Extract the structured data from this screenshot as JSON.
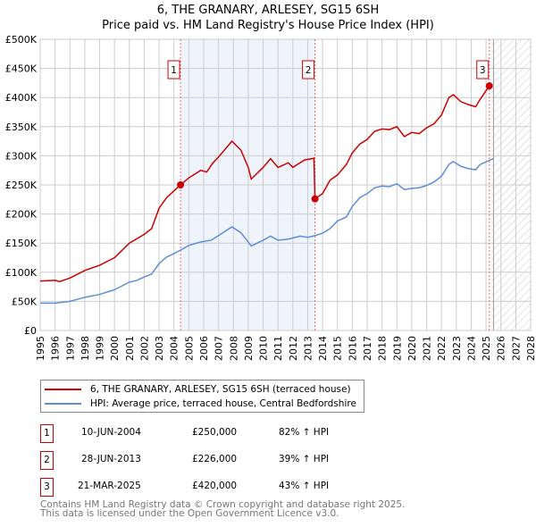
{
  "chart_data": {
    "type": "line",
    "title": "6, THE GRANARY, ARLESEY, SG15 6SH",
    "subtitle": "Price paid vs. HM Land Registry's House Price Index (HPI)",
    "xlim": [
      1995,
      2028
    ],
    "ylim": [
      0,
      500000
    ],
    "x_ticks": [
      "1995",
      "1996",
      "1997",
      "1998",
      "1999",
      "2000",
      "2001",
      "2002",
      "2003",
      "2004",
      "2005",
      "2006",
      "2007",
      "2008",
      "2009",
      "2010",
      "2011",
      "2012",
      "2013",
      "2014",
      "2015",
      "2016",
      "2017",
      "2018",
      "2019",
      "2020",
      "2021",
      "2022",
      "2023",
      "2024",
      "2025",
      "2026",
      "2027",
      "2028"
    ],
    "y_ticks": [
      "£0",
      "£50K",
      "£100K",
      "£150K",
      "£200K",
      "£250K",
      "£300K",
      "£350K",
      "£400K",
      "£450K",
      "£500K"
    ],
    "grid": true,
    "series": [
      {
        "name": "6, THE GRANARY, ARLESEY, SG15 6SH (terraced house)",
        "color": "#cc0000",
        "x": [
          1995,
          1996,
          1996.3,
          1997,
          1998,
          1999,
          2000,
          2001,
          2002,
          2002.5,
          2003,
          2003.5,
          2004.44,
          2005,
          2005.8,
          2006.2,
          2006.6,
          2007,
          2007.9,
          2008.5,
          2009,
          2009.2,
          2010,
          2010.5,
          2011,
          2011.7,
          2012,
          2012.8,
          2013.3,
          2013.42,
          2013.49,
          2014,
          2014.5,
          2015,
          2015.6,
          2016,
          2016.5,
          2017,
          2017.5,
          2018,
          2018.5,
          2019,
          2019.5,
          2020,
          2020.5,
          2021,
          2021.5,
          2022,
          2022.5,
          2022.8,
          2023.3,
          2023.8,
          2024.3,
          2024.6,
          2025.22
        ],
        "y": [
          85,
          86,
          84,
          90,
          103,
          112,
          125,
          150,
          165,
          175,
          210,
          228,
          250,
          262,
          275,
          272,
          287,
          298,
          325,
          310,
          280,
          260,
          280,
          295,
          280,
          288,
          280,
          293,
          295,
          296,
          226,
          235,
          258,
          267,
          285,
          305,
          320,
          328,
          342,
          346,
          345,
          350,
          333,
          340,
          338,
          348,
          355,
          370,
          400,
          405,
          393,
          388,
          384,
          397,
          420
        ]
      },
      {
        "name": "HPI: Average price, terraced house, Central Bedfordshire",
        "color": "#5b8fd6",
        "x": [
          1995,
          1996,
          1997,
          1998,
          1999,
          2000,
          2001,
          2001.5,
          2002,
          2002.5,
          2003,
          2003.5,
          2004,
          2004.44,
          2005,
          2005.8,
          2006.5,
          2007,
          2007.9,
          2008.5,
          2009,
          2009.2,
          2010,
          2010.5,
          2011,
          2011.7,
          2012.5,
          2013,
          2013.5,
          2014,
          2014.5,
          2015,
          2015.6,
          2016,
          2016.5,
          2017,
          2017.5,
          2018,
          2018.5,
          2019,
          2019.5,
          2020,
          2020.5,
          2021,
          2021.5,
          2022,
          2022.5,
          2022.8,
          2023.3,
          2023.8,
          2024.3,
          2024.6,
          2025.3,
          2025.5
        ],
        "y": [
          47,
          47,
          50,
          57,
          62,
          70,
          83,
          86,
          92,
          97,
          115,
          126,
          132,
          138,
          146,
          152,
          155,
          163,
          178,
          168,
          152,
          145,
          155,
          162,
          155,
          157,
          162,
          160,
          163,
          167,
          175,
          188,
          195,
          213,
          228,
          235,
          245,
          248,
          247,
          252,
          242,
          244,
          245,
          249,
          255,
          265,
          285,
          290,
          282,
          278,
          276,
          285,
          293,
          295
        ]
      }
    ],
    "y_unit": "thousands GBP",
    "shaded_period": [
      2004.44,
      2013.49
    ],
    "forecast_hatch_from": 2025.5,
    "legend_placement": "bottom",
    "sales": [
      {
        "label": "1",
        "date": "10-JUN-2004",
        "x": 2004.44,
        "price": "£250,000",
        "value": 250,
        "hpi": "82% ↑ HPI"
      },
      {
        "label": "2",
        "date": "28-JUN-2013",
        "x": 2013.49,
        "price": "£226,000",
        "value": 226,
        "hpi": "39% ↑ HPI"
      },
      {
        "label": "3",
        "date": "21-MAR-2025",
        "x": 2025.22,
        "price": "£420,000",
        "value": 420,
        "hpi": "43% ↑ HPI"
      }
    ]
  },
  "footer": {
    "line1": "Contains HM Land Registry data © Crown copyright and database right 2025.",
    "line2": "This data is licensed under the Open Government Licence v3.0."
  }
}
